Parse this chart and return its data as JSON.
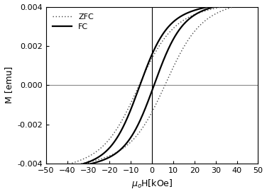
{
  "title": "",
  "xlabel": "$\\mu_o$H[kOe]",
  "ylabel": "M [emu]",
  "xlim": [
    -50,
    50
  ],
  "ylim": [
    -0.004,
    0.004
  ],
  "xticks": [
    -50,
    -40,
    -30,
    -20,
    -10,
    0,
    10,
    20,
    30,
    40,
    50
  ],
  "yticks": [
    -0.004,
    -0.002,
    0.0,
    0.002,
    0.004
  ],
  "M_sat": 0.00365,
  "fc_hc": 3.5,
  "fc_shift": -2.5,
  "fc_tanh_scale": 13.0,
  "zfc_hc": 6.5,
  "zfc_shift": 0.0,
  "zfc_tanh_scale": 16.0,
  "zfc_M_sat": 0.00355,
  "n_points": 500,
  "background_color": "#ffffff",
  "line_color_fc": "#000000",
  "line_color_zfc": "#444444",
  "linewidth_fc": 1.6,
  "linewidth_zfc": 1.0,
  "dot_size": 1.5,
  "hline_color": "#888888",
  "vline_color": "#000000"
}
